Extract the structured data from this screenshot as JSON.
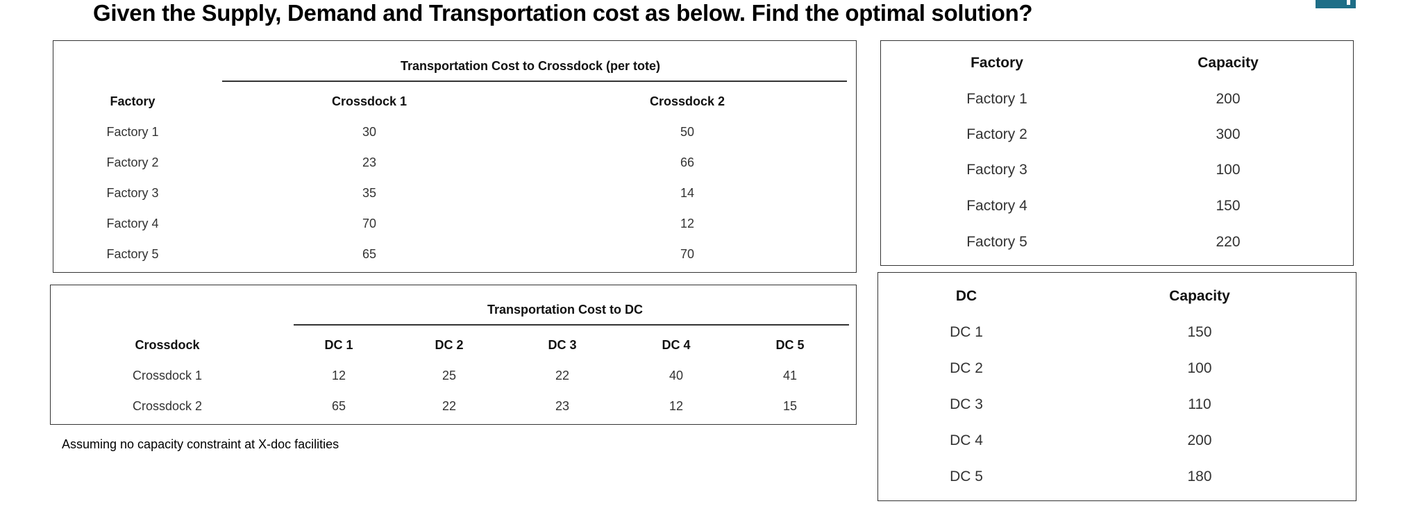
{
  "title": "Given the Supply, Demand and Transportation cost as below. Find the optimal solution?",
  "crossdock_cost_table": {
    "group_header": "Transportation Cost to Crossdock (per tote)",
    "headers": [
      "Factory",
      "Crossdock 1",
      "Crossdock 2"
    ],
    "rows": [
      [
        "Factory 1",
        "30",
        "50"
      ],
      [
        "Factory 2",
        "23",
        "66"
      ],
      [
        "Factory 3",
        "35",
        "14"
      ],
      [
        "Factory 4",
        "70",
        "12"
      ],
      [
        "Factory 5",
        "65",
        "70"
      ]
    ]
  },
  "dc_cost_table": {
    "group_header": "Transportation Cost to DC",
    "headers": [
      "Crossdock",
      "DC 1",
      "DC 2",
      "DC 3",
      "DC 4",
      "DC 5"
    ],
    "rows": [
      [
        "Crossdock 1",
        "12",
        "25",
        "22",
        "40",
        "41"
      ],
      [
        "Crossdock 2",
        "65",
        "22",
        "23",
        "12",
        "15"
      ]
    ]
  },
  "factory_capacity_table": {
    "headers": [
      "Factory",
      "Capacity"
    ],
    "rows": [
      [
        "Factory 1",
        "200"
      ],
      [
        "Factory 2",
        "300"
      ],
      [
        "Factory 3",
        "100"
      ],
      [
        "Factory 4",
        "150"
      ],
      [
        "Factory 5",
        "220"
      ]
    ]
  },
  "dc_capacity_table": {
    "headers": [
      "DC",
      "Capacity"
    ],
    "rows": [
      [
        "DC 1",
        "150"
      ],
      [
        "DC 2",
        "100"
      ],
      [
        "DC 3",
        "110"
      ],
      [
        "DC 4",
        "200"
      ],
      [
        "DC 5",
        "180"
      ]
    ]
  },
  "note": "Assuming no capacity constraint at X-doc facilities"
}
